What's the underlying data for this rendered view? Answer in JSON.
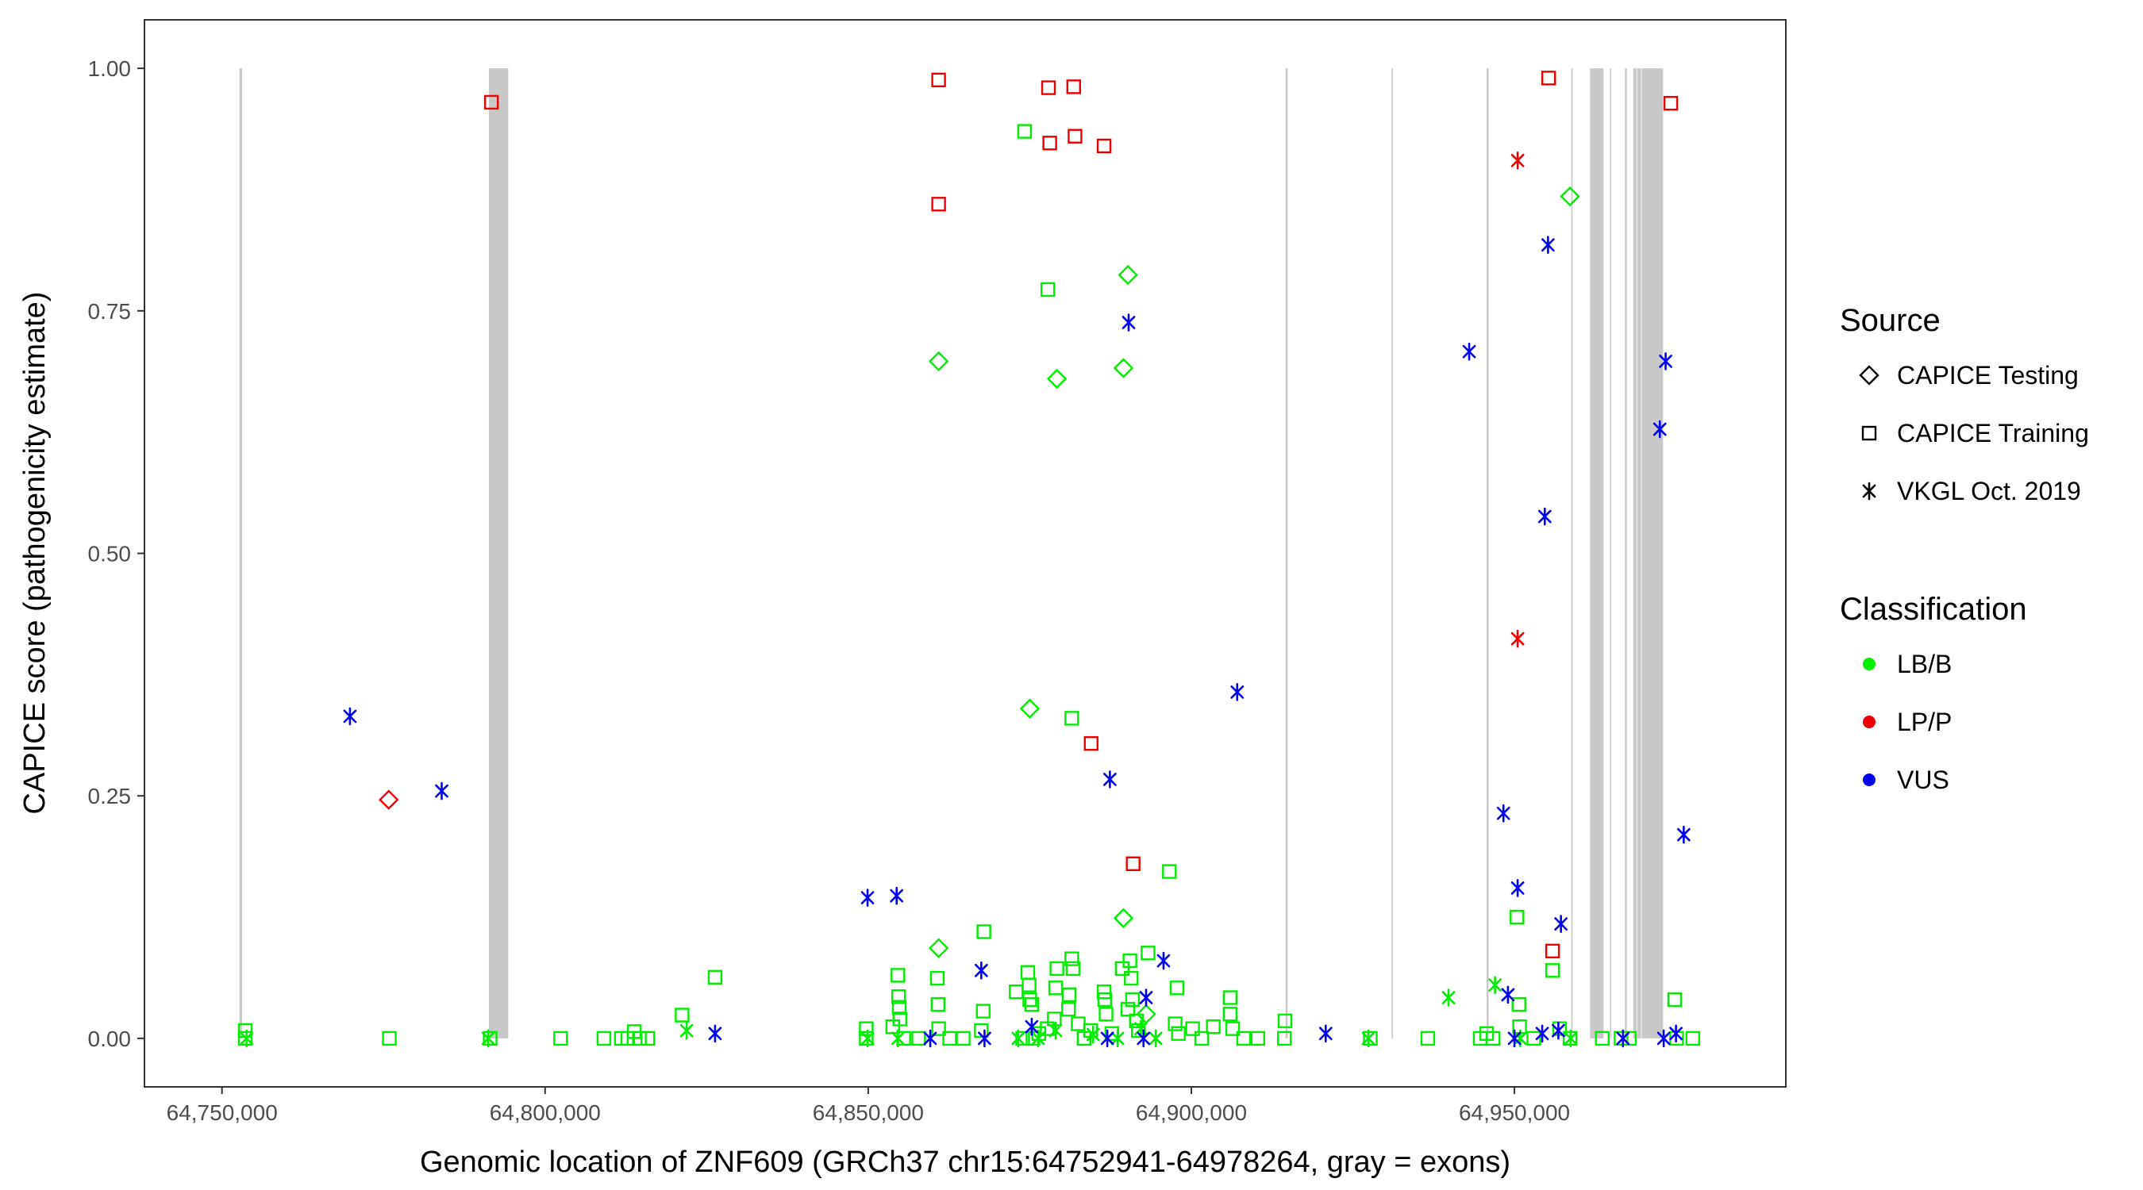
{
  "chart_data": {
    "type": "scatter",
    "title": "",
    "xlabel": "Genomic location of ZNF609 (GRCh37 chr15:64752941-64978264, gray = exons)",
    "ylabel": "CAPICE score (pathogenicity estimate)",
    "xlim": [
      64738000,
      64992000
    ],
    "ylim": [
      -0.05,
      1.05
    ],
    "x_ticks": [
      64750000,
      64800000,
      64850000,
      64900000,
      64950000
    ],
    "x_tick_labels": [
      "64,750,000",
      "64,800,000",
      "64,850,000",
      "64,900,000",
      "64,950,000"
    ],
    "y_ticks": [
      0,
      0.25,
      0.5,
      0.75,
      1.0
    ],
    "y_tick_labels": [
      "0.00",
      "0.25",
      "0.50",
      "0.75",
      "1.00"
    ],
    "grid": false,
    "exons": [
      [
        64752700,
        64753100
      ],
      [
        64791300,
        64794300
      ],
      [
        64914600,
        64914900
      ],
      [
        64931000,
        64931200
      ],
      [
        64945700,
        64946000
      ],
      [
        64958800,
        64959000
      ],
      [
        64961700,
        64963800
      ],
      [
        64964800,
        64965000
      ],
      [
        64967100,
        64967400
      ],
      [
        64968400,
        64968900
      ],
      [
        64969000,
        64969600
      ],
      [
        64969700,
        64973000
      ]
    ],
    "legend": {
      "position": "right",
      "source_title": "Source",
      "source_items": [
        {
          "label": "CAPICE Testing",
          "shape": "diamond"
        },
        {
          "label": "CAPICE Training",
          "shape": "square"
        },
        {
          "label": "VKGL Oct. 2019",
          "shape": "asterisk"
        }
      ],
      "class_title": "Classification",
      "class_items": [
        {
          "label": "LB/B",
          "color": "#00ee00"
        },
        {
          "label": "LP/P",
          "color": "#ee0000"
        },
        {
          "label": "VUS",
          "color": "#0000ee"
        }
      ]
    },
    "colors": {
      "LB/B": "#00ee00",
      "LP/P": "#ee0000",
      "VUS": "#0000ee"
    },
    "series": [
      {
        "name": "CAPICE Training / LP/P",
        "shape": "square",
        "class": "LP/P",
        "points": [
          [
            64791700,
            0.965
          ],
          [
            64860900,
            0.988
          ],
          [
            64860900,
            0.86
          ],
          [
            64877900,
            0.98
          ],
          [
            64881800,
            0.981
          ],
          [
            64878100,
            0.923
          ],
          [
            64882000,
            0.93
          ],
          [
            64886500,
            0.92
          ],
          [
            64884500,
            0.304
          ],
          [
            64891000,
            0.18
          ],
          [
            64955300,
            0.99
          ],
          [
            64955900,
            0.09
          ],
          [
            64974200,
            0.964
          ]
        ]
      },
      {
        "name": "CAPICE Testing / LP/P",
        "shape": "diamond",
        "class": "LP/P",
        "points": [
          [
            64775800,
            0.246
          ]
        ]
      },
      {
        "name": "VKGL Oct. 2019 / LP/P",
        "shape": "asterisk",
        "class": "LP/P",
        "points": [
          [
            64950500,
            0.905
          ],
          [
            64950500,
            0.412
          ]
        ]
      },
      {
        "name": "CAPICE Testing / LB/B",
        "shape": "diamond",
        "class": "LB/B",
        "points": [
          [
            64860900,
            0.698
          ],
          [
            64879200,
            0.68
          ],
          [
            64889500,
            0.691
          ],
          [
            64890200,
            0.787
          ],
          [
            64875000,
            0.34
          ],
          [
            64889500,
            0.124
          ],
          [
            64860900,
            0.093
          ],
          [
            64958600,
            0.868
          ],
          [
            64893000,
            0.025
          ]
        ]
      },
      {
        "name": "CAPICE Training / LB/B",
        "shape": "square",
        "class": "LB/B",
        "points": [
          [
            64753600,
            0.008
          ],
          [
            64753600,
            0.0
          ],
          [
            64775900,
            0.0
          ],
          [
            64791500,
            0.0
          ],
          [
            64802400,
            0.0
          ],
          [
            64809100,
            0.0
          ],
          [
            64811800,
            0.0
          ],
          [
            64812800,
            0.0
          ],
          [
            64813800,
            0.007
          ],
          [
            64814600,
            0.0
          ],
          [
            64815900,
            0.0
          ],
          [
            64821200,
            0.024
          ],
          [
            64826300,
            0.063
          ],
          [
            64849700,
            0.01
          ],
          [
            64849700,
            0.0
          ],
          [
            64853800,
            0.012
          ],
          [
            64854600,
            0.065
          ],
          [
            64854700,
            0.043
          ],
          [
            64854800,
            0.032
          ],
          [
            64854900,
            0.02
          ],
          [
            64855500,
            0.0
          ],
          [
            64857800,
            0.0
          ],
          [
            64860700,
            0.062
          ],
          [
            64860800,
            0.035
          ],
          [
            64860900,
            0.01
          ],
          [
            64862600,
            0.0
          ],
          [
            64864700,
            0.0
          ],
          [
            64867900,
            0.11
          ],
          [
            64867800,
            0.028
          ],
          [
            64867500,
            0.008
          ],
          [
            64872900,
            0.048
          ],
          [
            64873900,
            0.0
          ],
          [
            64874700,
            0.068
          ],
          [
            64874900,
            0.055
          ],
          [
            64875000,
            0.04
          ],
          [
            64875300,
            0.035
          ],
          [
            64875500,
            0.0
          ],
          [
            64874200,
            0.935
          ],
          [
            64877800,
            0.772
          ],
          [
            64879000,
            0.052
          ],
          [
            64879200,
            0.072
          ],
          [
            64878800,
            0.02
          ],
          [
            64877700,
            0.01
          ],
          [
            64876400,
            0.005
          ],
          [
            64881500,
            0.33
          ],
          [
            64881500,
            0.082
          ],
          [
            64881700,
            0.072
          ],
          [
            64881100,
            0.045
          ],
          [
            64881000,
            0.03
          ],
          [
            64882500,
            0.015
          ],
          [
            64883400,
            0.0
          ],
          [
            64884400,
            0.008
          ],
          [
            64886500,
            0.048
          ],
          [
            64886600,
            0.04
          ],
          [
            64886800,
            0.025
          ],
          [
            64887700,
            0.005
          ],
          [
            64889300,
            0.072
          ],
          [
            64890500,
            0.08
          ],
          [
            64890700,
            0.062
          ],
          [
            64890900,
            0.04
          ],
          [
            64890200,
            0.03
          ],
          [
            64891500,
            0.018
          ],
          [
            64891800,
            0.008
          ],
          [
            64893300,
            0.088
          ],
          [
            64896600,
            0.172
          ],
          [
            64897800,
            0.052
          ],
          [
            64897500,
            0.015
          ],
          [
            64898000,
            0.005
          ],
          [
            64900200,
            0.01
          ],
          [
            64901600,
            0.0
          ],
          [
            64903400,
            0.012
          ],
          [
            64906000,
            0.042
          ],
          [
            64906000,
            0.025
          ],
          [
            64906400,
            0.01
          ],
          [
            64908100,
            0.0
          ],
          [
            64910300,
            0.0
          ],
          [
            64914500,
            0.018
          ],
          [
            64914400,
            0.0
          ],
          [
            64927700,
            0.0
          ],
          [
            64936600,
            0.0
          ],
          [
            64944700,
            0.0
          ],
          [
            64945700,
            0.005
          ],
          [
            64946700,
            0.0
          ],
          [
            64950400,
            0.125
          ],
          [
            64950700,
            0.035
          ],
          [
            64950800,
            0.012
          ],
          [
            64953000,
            0.0
          ],
          [
            64955900,
            0.07
          ],
          [
            64957000,
            0.01
          ],
          [
            64958600,
            0.0
          ],
          [
            64963600,
            0.0
          ],
          [
            64966500,
            0.0
          ],
          [
            64967800,
            0.0
          ],
          [
            64974800,
            0.04
          ],
          [
            64975100,
            0.0
          ],
          [
            64977600,
            0.0
          ]
        ]
      },
      {
        "name": "VKGL Oct. 2019 / LB/B",
        "shape": "asterisk",
        "class": "LB/B",
        "points": [
          [
            64753800,
            0.0
          ],
          [
            64791200,
            0.0
          ],
          [
            64821900,
            0.008
          ],
          [
            64849900,
            0.0
          ],
          [
            64854600,
            0.0
          ],
          [
            64873200,
            0.0
          ],
          [
            64876300,
            0.0
          ],
          [
            64879000,
            0.008
          ],
          [
            64884800,
            0.004
          ],
          [
            64888600,
            0.0
          ],
          [
            64892200,
            0.01
          ],
          [
            64894500,
            0.0
          ],
          [
            64927400,
            0.0
          ],
          [
            64939800,
            0.042
          ],
          [
            64947000,
            0.055
          ],
          [
            64950900,
            0.0
          ],
          [
            64958700,
            0.0
          ]
        ]
      },
      {
        "name": "VKGL Oct. 2019 / VUS",
        "shape": "asterisk",
        "class": "VUS",
        "points": [
          [
            64769800,
            0.332
          ],
          [
            64784000,
            0.255
          ],
          [
            64826300,
            0.005
          ],
          [
            64849900,
            0.145
          ],
          [
            64854400,
            0.147
          ],
          [
            64859600,
            0.0
          ],
          [
            64867500,
            0.07
          ],
          [
            64868000,
            0.0
          ],
          [
            64875300,
            0.012
          ],
          [
            64887400,
            0.267
          ],
          [
            64887000,
            0.0
          ],
          [
            64890300,
            0.738
          ],
          [
            64892600,
            0.0
          ],
          [
            64893000,
            0.042
          ],
          [
            64895700,
            0.08
          ],
          [
            64907100,
            0.357
          ],
          [
            64920800,
            0.005
          ],
          [
            64943000,
            0.708
          ],
          [
            64948300,
            0.232
          ],
          [
            64949000,
            0.045
          ],
          [
            64950500,
            0.155
          ],
          [
            64950000,
            0.0
          ],
          [
            64954700,
            0.538
          ],
          [
            64955200,
            0.818
          ],
          [
            64954300,
            0.005
          ],
          [
            64957200,
            0.118
          ],
          [
            64956800,
            0.008
          ],
          [
            64966800,
            0.0
          ],
          [
            64972500,
            0.628
          ],
          [
            64973400,
            0.698
          ],
          [
            64976200,
            0.21
          ],
          [
            64973100,
            0.0
          ],
          [
            64975000,
            0.005
          ]
        ]
      }
    ]
  }
}
